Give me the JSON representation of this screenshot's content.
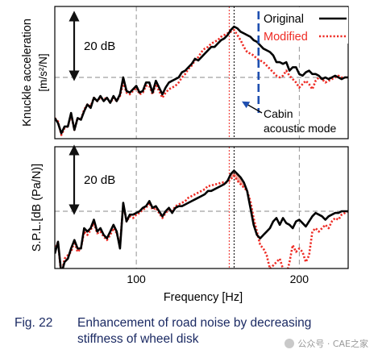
{
  "chart_data": [
    {
      "type": "line",
      "ylabel": "Knuckle acceleration",
      "yunit": "[m/s²/N]",
      "xlim": [
        50,
        230
      ],
      "legend": {
        "placement": "top-right",
        "entries": [
          "Original",
          "Modified"
        ]
      },
      "scale_bar": "20 dB",
      "scale_bar_db": 20,
      "annotation": {
        "lines": [
          "Cabin",
          "acoustic mode"
        ],
        "x": 175
      },
      "markers": {
        "original_peak_x": 160,
        "modified_peak_x": 157
      },
      "series": [
        {
          "name": "Original",
          "color": "#000000",
          "style": "solid",
          "x": [
            50,
            52,
            54,
            56,
            58,
            60,
            62,
            64,
            66,
            68,
            70,
            72,
            74,
            76,
            78,
            80,
            82,
            84,
            86,
            88,
            90,
            92,
            94,
            96,
            98,
            100,
            102,
            104,
            106,
            108,
            110,
            112,
            114,
            116,
            118,
            120,
            122,
            124,
            126,
            128,
            130,
            132,
            134,
            136,
            138,
            140,
            142,
            144,
            146,
            148,
            150,
            152,
            154,
            156,
            158,
            160,
            162,
            164,
            166,
            168,
            170,
            172,
            174,
            176,
            178,
            180,
            182,
            184,
            186,
            188,
            190,
            192,
            194,
            196,
            198,
            200,
            202,
            204,
            206,
            208,
            210,
            212,
            214,
            216,
            218,
            220,
            222,
            224,
            226,
            228,
            230
          ],
          "y": [
            -24,
            -27,
            -33,
            -29,
            -29,
            -21,
            -31,
            -24,
            -25,
            -20,
            -16,
            -18,
            -12,
            -14,
            -11,
            -14,
            -12,
            -15,
            -11,
            -14,
            -10,
            0,
            -8,
            -9,
            -7,
            -5,
            -9,
            -8,
            -3,
            -3,
            -9,
            -2,
            -6,
            -10,
            -6,
            -3,
            -2,
            -1,
            0,
            3,
            4,
            6,
            8,
            11,
            10,
            12,
            14,
            16,
            18,
            18,
            20,
            22,
            23,
            25,
            28,
            30,
            29,
            27,
            26,
            25,
            24,
            22,
            21,
            19,
            17,
            16,
            15,
            13,
            9,
            9,
            8,
            9,
            4,
            6,
            6,
            2,
            1,
            3,
            4,
            2,
            2,
            1,
            -1,
            0,
            -1,
            0,
            1,
            0,
            -1,
            0,
            0
          ]
        },
        {
          "name": "Modified",
          "color": "#ee2b24",
          "style": "dotted",
          "x": [
            50,
            52,
            54,
            56,
            58,
            60,
            62,
            64,
            66,
            68,
            70,
            72,
            74,
            76,
            78,
            80,
            82,
            84,
            86,
            88,
            90,
            92,
            94,
            96,
            98,
            100,
            102,
            104,
            106,
            108,
            110,
            112,
            114,
            116,
            118,
            120,
            122,
            124,
            126,
            128,
            130,
            132,
            134,
            136,
            138,
            140,
            142,
            144,
            146,
            148,
            150,
            152,
            154,
            156,
            158,
            160,
            162,
            164,
            166,
            168,
            170,
            172,
            174,
            176,
            178,
            180,
            182,
            184,
            186,
            188,
            190,
            192,
            194,
            196,
            198,
            200,
            202,
            204,
            206,
            208,
            210,
            212,
            214,
            216,
            218,
            220,
            222,
            224,
            226,
            228,
            230
          ],
          "y": [
            -24,
            -26,
            -34,
            -30,
            -29,
            -22,
            -31,
            -24,
            -25,
            -19,
            -16,
            -17,
            -12,
            -14,
            -12,
            -13,
            -12,
            -15,
            -12,
            -14,
            -11,
            -3,
            -9,
            -10,
            -8,
            -6,
            -10,
            -9,
            -5,
            -5,
            -10,
            -4,
            -8,
            -12,
            -9,
            -7,
            -6,
            -5,
            -3,
            0,
            2,
            5,
            7,
            10,
            12,
            15,
            17,
            18,
            20,
            21,
            22,
            24,
            25,
            26,
            27,
            28,
            25,
            22,
            18,
            15,
            14,
            13,
            11,
            10,
            9,
            7,
            5,
            3,
            1,
            0,
            1,
            4,
            1,
            -1,
            -3,
            -6,
            -4,
            -2,
            -4,
            -7,
            -2,
            0,
            -1,
            -3,
            -2,
            -1,
            0,
            1,
            0,
            0,
            0
          ]
        }
      ]
    },
    {
      "type": "line",
      "ylabel": "S.P.L.[dB (Pa/N)]",
      "xlabel": "Frequency [Hz]",
      "xlim": [
        50,
        230
      ],
      "xticks": [
        {
          "value": 100,
          "label": "100"
        },
        {
          "value": 200,
          "label": "200"
        }
      ],
      "scale_bar": "20 dB",
      "scale_bar_db": 20,
      "shaded_region": {
        "from": 157,
        "to": 177,
        "color": "#f4a59a"
      },
      "series": [
        {
          "name": "Original",
          "color": "#000000",
          "style": "solid",
          "x": [
            50,
            52,
            54,
            56,
            58,
            60,
            62,
            64,
            66,
            68,
            70,
            72,
            74,
            76,
            78,
            80,
            82,
            84,
            86,
            88,
            90,
            92,
            94,
            96,
            98,
            100,
            102,
            104,
            106,
            108,
            110,
            112,
            114,
            116,
            118,
            120,
            122,
            124,
            126,
            128,
            130,
            132,
            134,
            136,
            138,
            140,
            142,
            144,
            146,
            148,
            150,
            152,
            154,
            156,
            158,
            160,
            162,
            164,
            166,
            168,
            170,
            172,
            174,
            176,
            178,
            180,
            182,
            184,
            186,
            188,
            190,
            192,
            194,
            196,
            198,
            200,
            202,
            204,
            206,
            208,
            210,
            212,
            214,
            216,
            218,
            220,
            222,
            224,
            226,
            228,
            230
          ],
          "y": [
            -25,
            -18,
            -37,
            -30,
            -28,
            -22,
            -17,
            -22,
            -22,
            -10,
            -12,
            -10,
            -5,
            -12,
            -10,
            -14,
            -16,
            -12,
            -8,
            -12,
            -22,
            5,
            -6,
            -2,
            -2,
            -1,
            0,
            2,
            3,
            6,
            2,
            3,
            0,
            -3,
            0,
            2,
            -1,
            2,
            3,
            3,
            4,
            5,
            6,
            7,
            8,
            9,
            10,
            12,
            12,
            13,
            14,
            15,
            16,
            18,
            22,
            24,
            22,
            20,
            17,
            12,
            2,
            -8,
            -14,
            -16,
            -14,
            -12,
            -10,
            -6,
            -4,
            -8,
            -4,
            -7,
            -8,
            -10,
            -6,
            -5,
            -7,
            -9,
            -6,
            -3,
            -1,
            -2,
            -3,
            -5,
            -3,
            -2,
            -1,
            -1,
            0,
            0,
            0
          ]
        },
        {
          "name": "Modified",
          "color": "#ee2b24",
          "style": "dotted",
          "x": [
            50,
            52,
            54,
            56,
            58,
            60,
            62,
            64,
            66,
            68,
            70,
            72,
            74,
            76,
            78,
            80,
            82,
            84,
            86,
            88,
            90,
            92,
            94,
            96,
            98,
            100,
            102,
            104,
            106,
            108,
            110,
            112,
            114,
            116,
            118,
            120,
            122,
            124,
            126,
            128,
            130,
            132,
            134,
            136,
            138,
            140,
            142,
            144,
            146,
            148,
            150,
            152,
            154,
            156,
            158,
            160,
            162,
            164,
            166,
            168,
            170,
            172,
            174,
            176,
            178,
            180,
            182,
            184,
            186,
            188,
            190,
            192,
            194,
            196,
            198,
            200,
            202,
            204,
            206,
            208,
            210,
            212,
            214,
            216,
            218,
            220,
            222,
            224,
            226,
            228,
            230
          ],
          "y": [
            -23,
            -18,
            -38,
            -28,
            -26,
            -24,
            -18,
            -24,
            -22,
            -12,
            -14,
            -11,
            -7,
            -13,
            -12,
            -15,
            -17,
            -14,
            -10,
            -13,
            -20,
            4,
            -6,
            -3,
            -4,
            -2,
            -1,
            1,
            2,
            5,
            1,
            2,
            -1,
            -4,
            -1,
            1,
            0,
            3,
            4,
            5,
            6,
            8,
            9,
            10,
            11,
            12,
            13,
            15,
            15,
            16,
            16,
            17,
            17,
            17,
            19,
            21,
            18,
            16,
            14,
            12,
            6,
            -4,
            -12,
            -20,
            -22,
            -26,
            -34,
            -32,
            -30,
            -28,
            -34,
            -38,
            -30,
            -20,
            -24,
            -22,
            -24,
            -30,
            -26,
            -12,
            -10,
            -12,
            -10,
            -8,
            -10,
            -6,
            -4,
            -5,
            -2,
            -1,
            0
          ]
        }
      ]
    }
  ],
  "caption": {
    "number": "Fig. 22",
    "line1": "Enhancement of road noise by decreasing",
    "line2": "stiffness of wheel disk"
  },
  "watermark": "公众号 · CAE之家",
  "colors": {
    "original": "#000000",
    "modified": "#ee2b24",
    "scale_arrow": "#111111",
    "annotation_arrow": "#1f4fb0",
    "shade": "#f4a59a",
    "guide": "#888888"
  },
  "icons": {
    "scale_arrow": "double-headed-vertical-arrow",
    "annotation_arrow": "arrow-up-left"
  }
}
